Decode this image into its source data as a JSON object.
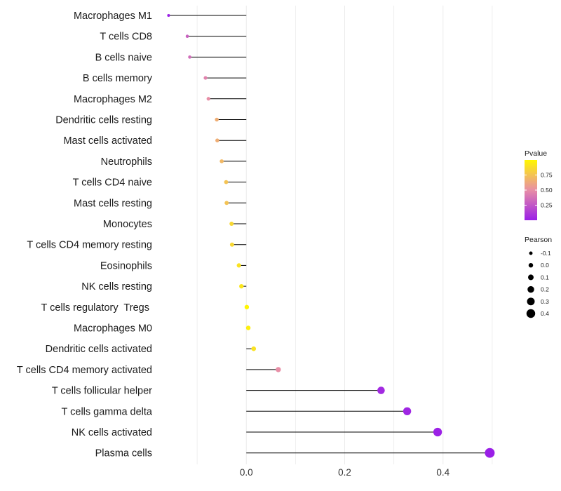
{
  "chart_data": {
    "type": "lollipop",
    "categories": [
      "Macrophages M1",
      "T cells CD8",
      "B cells naive",
      "B cells memory",
      "Macrophages M2",
      "Dendritic cells resting",
      "Mast cells activated",
      "Neutrophils",
      "T cells CD4 naive",
      "Mast cells resting",
      "Monocytes",
      "T cells CD4 memory resting",
      "Eosinophils",
      "NK cells resting",
      "T cells regulatory  Tregs ",
      "Macrophages M0",
      "Dendritic cells activated",
      "T cells CD4 memory activated",
      "T cells follicular helper",
      "T cells gamma delta",
      "NK cells activated",
      "Plasma cells"
    ],
    "pearson": [
      -0.158,
      -0.12,
      -0.115,
      -0.083,
      -0.077,
      -0.06,
      -0.059,
      -0.05,
      -0.041,
      -0.04,
      -0.03,
      -0.029,
      -0.015,
      -0.01,
      0.001,
      0.004,
      0.015,
      0.065,
      0.274,
      0.327,
      0.389,
      0.495
    ],
    "pvalue": [
      0.01,
      0.3,
      0.35,
      0.45,
      0.5,
      0.65,
      0.65,
      0.7,
      0.75,
      0.75,
      0.85,
      0.85,
      0.9,
      0.92,
      0.99,
      0.96,
      0.9,
      0.5,
      0.05,
      0.03,
      0.01,
      0.0
    ],
    "xlim": [
      -0.17,
      0.54
    ],
    "xticks": [
      0.0,
      0.2,
      0.4
    ],
    "xtick_labels": [
      "0.0",
      "0.2",
      "0.4"
    ],
    "legend": {
      "color": {
        "title": "Pvalue",
        "ticks": [
          0.75,
          0.5,
          0.25
        ],
        "labels": [
          "0.75",
          "0.50",
          "0.25"
        ],
        "range": [
          0,
          1
        ],
        "colors": [
          "#9A1FE7",
          "#E88EA6",
          "#FFF701"
        ]
      },
      "size": {
        "title": "Pearson",
        "values": [
          -0.1,
          0.0,
          0.1,
          0.2,
          0.3,
          0.4
        ],
        "labels": [
          "-0.1",
          "0.0",
          "0.1",
          "0.2",
          "0.3",
          "0.4"
        ]
      },
      "position": "right"
    },
    "grid": true,
    "xlabel": "",
    "ylabel": ""
  }
}
